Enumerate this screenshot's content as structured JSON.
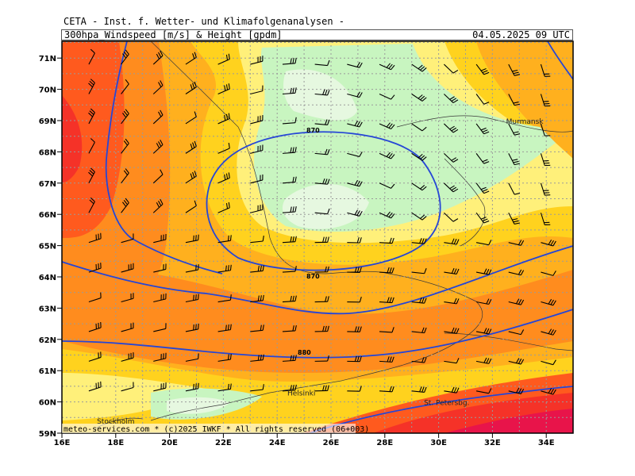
{
  "header": {
    "line1": "CETA - Inst. f. Wetter- und Klimafolgenanalysen -",
    "product": "300hpa_Windspeed [m/s] & Height [gpdm]",
    "valid_time": "04.05.2025 09 UTC"
  },
  "footer": {
    "credit": "meteo-services.com * (c)2025 IWKF * All rights reserved (06+003)"
  },
  "axes": {
    "lon_labels": [
      "16E",
      "18E",
      "20E",
      "22E",
      "24E",
      "26E",
      "28E",
      "30E",
      "32E",
      "34E"
    ],
    "lat_labels": [
      "71N",
      "70N",
      "69N",
      "68N",
      "67N",
      "66N",
      "65N",
      "64N",
      "63N",
      "62N",
      "61N",
      "60N",
      "59N"
    ]
  },
  "cities": [
    {
      "name": "Murmansk",
      "lon": 33.2,
      "lat": 68.9
    },
    {
      "name": "Helsinki",
      "lon": 24.9,
      "lat": 60.2
    },
    {
      "name": "Stockholm",
      "lon": 18.0,
      "lat": 59.3
    },
    {
      "name": "St. Petersbg.",
      "lon": 30.3,
      "lat": 59.9
    }
  ],
  "contours": [
    {
      "label": "870",
      "kind": "closed-low"
    },
    {
      "label": "870",
      "kind": "closed-low-south"
    },
    {
      "label": "880",
      "kind": "band"
    }
  ],
  "colors": {
    "line": "#2646d6",
    "coast": "#3a3a3a",
    "grid": "#9a9a9a",
    "wind_scale": [
      "#e6f8e0",
      "#c8f5c0",
      "#fff07a",
      "#ffd21e",
      "#ffb01e",
      "#ff8c1e",
      "#ff5a1e",
      "#f53228",
      "#e8144a"
    ]
  }
}
